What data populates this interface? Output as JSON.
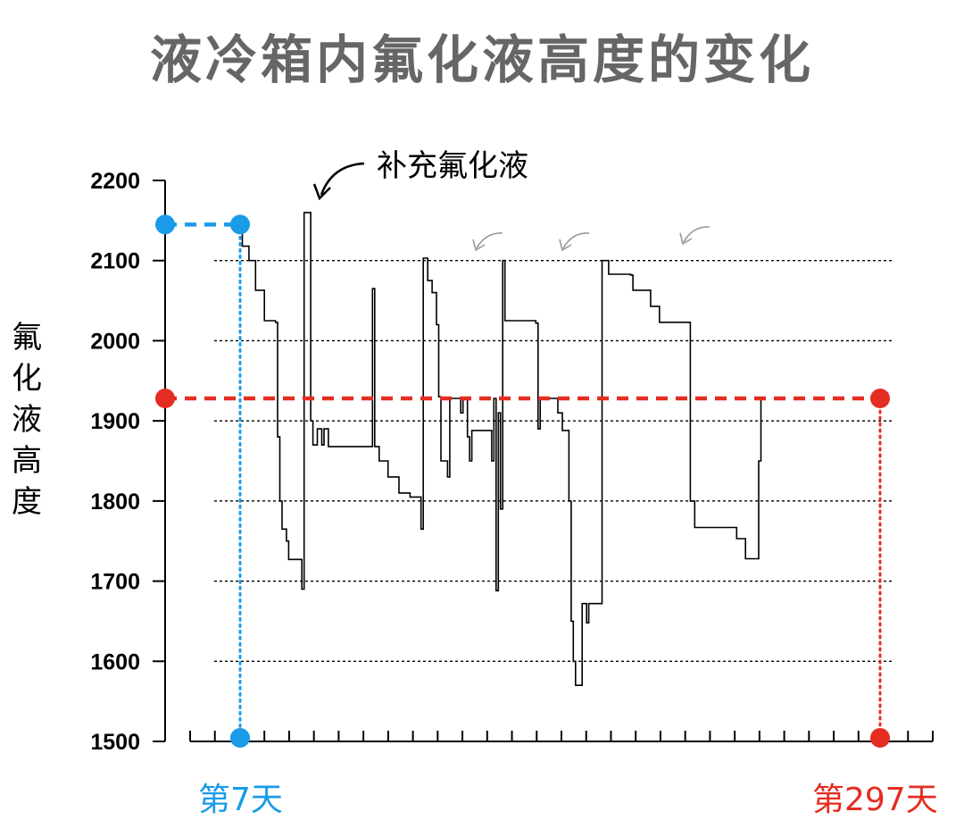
{
  "title": "液冷箱内氟化液高度的变化",
  "ylabel_chars": [
    "氟",
    "化",
    "液",
    "高",
    "度"
  ],
  "colors": {
    "start": "#1a9be8",
    "end": "#e52c20",
    "title": "#666666",
    "refill_arrow": "#999999"
  },
  "annotations": {
    "refill_label": "补充氟化液",
    "start_day": "第7天",
    "end_day": "第297天"
  },
  "chart_data": {
    "type": "line",
    "title": "液冷箱内氟化液高度的变化",
    "xlabel": "",
    "ylabel": "氟化液高度",
    "ylim": [
      1500,
      2200
    ],
    "yticks": [
      1500,
      1600,
      1700,
      1800,
      1900,
      2000,
      2100,
      2200
    ],
    "grid_lines_y": [
      1600,
      1700,
      1800,
      1900,
      2000,
      2100
    ],
    "x_axis": "天",
    "xlim": [
      7,
      297
    ],
    "start_marker": {
      "day": 7,
      "level": 2145
    },
    "end_marker": {
      "day": 297,
      "level": 1928
    },
    "series": [
      {
        "values_by_day": [
          [
            7,
            2145
          ],
          [
            8,
            2118
          ],
          [
            10,
            2118
          ],
          [
            11,
            2100
          ],
          [
            13,
            2100
          ],
          [
            14,
            2063
          ],
          [
            17,
            2063
          ],
          [
            18,
            2025
          ],
          [
            23,
            2023
          ],
          [
            24,
            1880
          ],
          [
            25,
            1800
          ],
          [
            26,
            1765
          ],
          [
            28,
            1750
          ],
          [
            29,
            1727
          ],
          [
            34,
            1727
          ],
          [
            35,
            1690
          ],
          [
            36,
            2160
          ],
          [
            38,
            2160
          ],
          [
            39,
            1900
          ],
          [
            40,
            1870
          ],
          [
            42,
            1890
          ],
          [
            44,
            1870
          ],
          [
            45,
            1890
          ],
          [
            47,
            1868
          ],
          [
            48,
            1868
          ],
          [
            66,
            1868
          ],
          [
            67,
            2065
          ],
          [
            68,
            1868
          ],
          [
            70,
            1850
          ],
          [
            73,
            1850
          ],
          [
            74,
            1830
          ],
          [
            78,
            1830
          ],
          [
            79,
            1810
          ],
          [
            84,
            1805
          ],
          [
            88,
            1805
          ],
          [
            89,
            1765
          ],
          [
            90,
            2103
          ],
          [
            92,
            2075
          ],
          [
            94,
            2060
          ],
          [
            96,
            2020
          ],
          [
            97,
            1930
          ],
          [
            98,
            1850
          ],
          [
            100,
            1850
          ],
          [
            101,
            1830
          ],
          [
            102,
            1928
          ],
          [
            106,
            1928
          ],
          [
            107,
            1910
          ],
          [
            108,
            1928
          ],
          [
            110,
            1880
          ],
          [
            111,
            1850
          ],
          [
            112,
            1888
          ],
          [
            120,
            1888
          ],
          [
            121,
            1850
          ],
          [
            122,
            1928
          ],
          [
            123,
            1688
          ],
          [
            124,
            1910
          ],
          [
            125,
            1790
          ],
          [
            126,
            2100
          ],
          [
            127,
            2025
          ],
          [
            141,
            2022
          ],
          [
            142,
            1890
          ],
          [
            143,
            1928
          ],
          [
            150,
            1928
          ],
          [
            151,
            1910
          ],
          [
            153,
            1888
          ],
          [
            155,
            1888
          ],
          [
            156,
            1800
          ],
          [
            157,
            1650
          ],
          [
            158,
            1600
          ],
          [
            159,
            1570
          ],
          [
            161,
            1570
          ],
          [
            162,
            1672
          ],
          [
            164,
            1648
          ],
          [
            165,
            1672
          ],
          [
            170,
            1672
          ],
          [
            171,
            2100
          ],
          [
            173,
            2100
          ],
          [
            174,
            2083
          ],
          [
            184,
            2082
          ],
          [
            185,
            2063
          ],
          [
            192,
            2063
          ],
          [
            193,
            2043
          ],
          [
            196,
            2043
          ],
          [
            197,
            2023
          ],
          [
            210,
            2023
          ],
          [
            211,
            1800
          ],
          [
            213,
            1767
          ],
          [
            231,
            1767
          ],
          [
            232,
            1753
          ],
          [
            235,
            1753
          ],
          [
            236,
            1728
          ],
          [
            241,
            1728
          ],
          [
            242,
            1850
          ],
          [
            243,
            1928
          ],
          [
            244,
            1928
          ]
        ]
      }
    ]
  }
}
